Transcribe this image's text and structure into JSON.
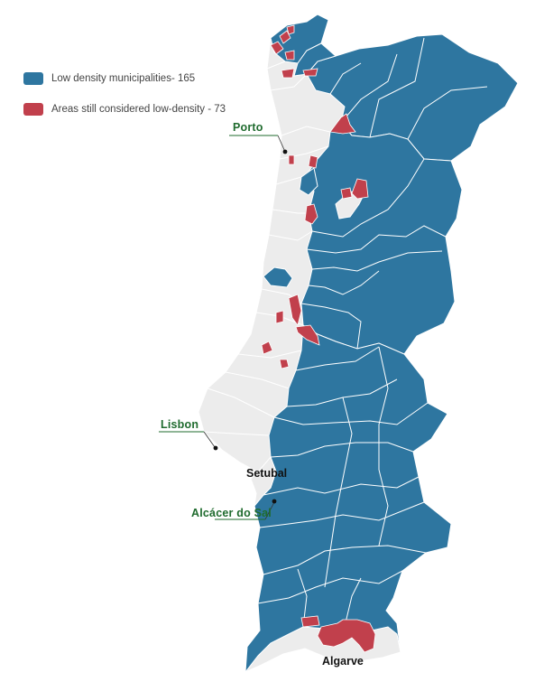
{
  "legend": [
    {
      "label": "Low density municipalities- 165",
      "color": "#2e76a0"
    },
    {
      "label": "Areas still considered low-density - 73",
      "color": "#c1404c"
    }
  ],
  "cities": {
    "porto": "Porto",
    "lisbon": "Lisbon",
    "setubal": "Setubal",
    "alcacer": "Alcácer do Sal",
    "algarve": "Algarve"
  },
  "colors": {
    "low_density": "#2e76a0",
    "still_low_density": "#c1404c",
    "other": "#ececec",
    "border": "#ffffff",
    "label_green": "#1f6b2e"
  }
}
